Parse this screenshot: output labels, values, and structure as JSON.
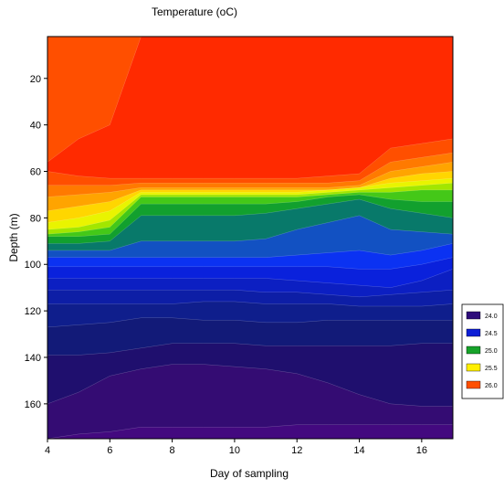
{
  "chart_data": {
    "type": "heatmap",
    "subtype": "filled-contour",
    "title": "Temperature (oC)",
    "xlabel": "Day of sampling",
    "ylabel": "Depth (m)",
    "xlim": [
      4,
      17
    ],
    "ylim": [
      175,
      2
    ],
    "y_inverted": true,
    "xticks": [
      "4",
      "6",
      "8",
      "10",
      "12",
      "14",
      "16"
    ],
    "yticks": [
      "20",
      "40",
      "60",
      "80",
      "100",
      "120",
      "140",
      "160"
    ],
    "legend": {
      "position": "right",
      "entries": [
        {
          "label": "24.0",
          "color": "#2e0d7a"
        },
        {
          "label": "24.5",
          "color": "#0d1fd6"
        },
        {
          "label": "25.0",
          "color": "#17a32a"
        },
        {
          "label": "25.5",
          "color": "#ffef00"
        },
        {
          "label": "26.0",
          "color": "#ff4f00"
        }
      ]
    },
    "contour_levels": [
      {
        "level": 23.8,
        "color": "#43097f"
      },
      {
        "level": 23.9,
        "color": "#340c73"
      },
      {
        "level": 24.0,
        "color": "#1f0f6e"
      },
      {
        "level": 24.1,
        "color": "#121a78"
      },
      {
        "level": 24.2,
        "color": "#0f1e8c"
      },
      {
        "level": 24.3,
        "color": "#0d1ea6"
      },
      {
        "level": 24.4,
        "color": "#0c1fc2"
      },
      {
        "level": 24.5,
        "color": "#0a21dc"
      },
      {
        "level": 24.6,
        "color": "#0b32f2"
      },
      {
        "level": 24.8,
        "color": "#1251c2"
      },
      {
        "level": 24.9,
        "color": "#08796a"
      },
      {
        "level": 25.0,
        "color": "#12a02e"
      },
      {
        "level": 25.2,
        "color": "#44c818"
      },
      {
        "level": 25.4,
        "color": "#a2e600"
      },
      {
        "level": 25.5,
        "color": "#e9f400"
      },
      {
        "level": 25.6,
        "color": "#ffd600"
      },
      {
        "level": 25.7,
        "color": "#ffa400"
      },
      {
        "level": 25.8,
        "color": "#ff7a00"
      },
      {
        "level": 25.9,
        "color": "#ff4f00"
      },
      {
        "level": 26.0,
        "color": "#ff2a00"
      }
    ],
    "x": [
      4,
      5,
      6,
      7,
      8,
      9,
      10,
      11,
      12,
      13,
      14,
      15,
      16,
      17
    ],
    "isoline_depths": [
      {
        "level": 26.0,
        "depth": [
          56,
          46,
          40,
          2,
          2,
          2,
          2,
          2,
          2,
          2,
          2,
          2,
          2,
          2
        ]
      },
      {
        "level": 25.9,
        "depth": [
          60,
          62,
          63,
          63,
          63,
          63,
          63,
          63,
          63,
          62,
          61,
          50,
          48,
          46
        ]
      },
      {
        "level": 25.8,
        "depth": [
          66,
          66,
          66,
          65,
          65,
          65,
          65,
          65,
          65,
          65,
          64,
          56,
          54,
          52
        ]
      },
      {
        "level": 25.7,
        "depth": [
          71,
          70,
          69,
          67,
          67,
          67,
          67,
          67,
          67,
          67,
          66,
          60,
          58,
          56
        ]
      },
      {
        "level": 25.6,
        "depth": [
          77,
          75,
          73,
          68,
          68,
          68,
          68,
          68,
          68,
          68,
          67,
          63,
          61,
          60
        ]
      },
      {
        "level": 25.5,
        "depth": [
          82,
          80,
          77,
          69,
          69,
          69,
          69,
          69,
          69,
          68,
          67,
          65,
          64,
          63
        ]
      },
      {
        "level": 25.4,
        "depth": [
          85,
          84,
          81,
          70,
          70,
          70,
          70,
          70,
          70,
          69,
          68,
          67,
          66,
          65
        ]
      },
      {
        "level": 25.2,
        "depth": [
          87,
          86,
          84,
          71,
          71,
          71,
          71,
          71,
          71,
          70,
          69,
          69,
          68,
          68
        ]
      },
      {
        "level": 25.0,
        "depth": [
          88,
          88,
          87,
          74,
          74,
          74,
          74,
          74,
          73,
          71,
          70,
          72,
          73,
          73
        ]
      },
      {
        "level": 24.9,
        "depth": [
          91,
          91,
          90,
          79,
          79,
          79,
          79,
          78,
          76,
          74,
          72,
          76,
          78,
          80
        ]
      },
      {
        "level": 24.8,
        "depth": [
          94,
          94,
          94,
          90,
          90,
          90,
          90,
          89,
          85,
          82,
          79,
          85,
          86,
          87
        ]
      },
      {
        "level": 24.6,
        "depth": [
          97,
          97,
          97,
          97,
          97,
          97,
          97,
          97,
          96,
          95,
          94,
          96,
          94,
          91
        ]
      },
      {
        "level": 24.5,
        "depth": [
          101,
          101,
          101,
          101,
          101,
          101,
          101,
          101,
          101,
          101,
          102,
          102,
          100,
          97
        ]
      },
      {
        "level": 24.4,
        "depth": [
          106,
          106,
          106,
          106,
          106,
          106,
          106,
          106,
          107,
          108,
          109,
          110,
          107,
          102
        ]
      },
      {
        "level": 24.3,
        "depth": [
          111,
          111,
          111,
          111,
          111,
          111,
          111,
          112,
          112,
          113,
          114,
          113,
          112,
          111
        ]
      },
      {
        "level": 24.2,
        "depth": [
          117,
          117,
          117,
          117,
          117,
          116,
          116,
          117,
          117,
          117,
          118,
          118,
          118,
          117
        ]
      },
      {
        "level": 24.1,
        "depth": [
          127,
          126,
          125,
          123,
          123,
          124,
          124,
          125,
          125,
          124,
          124,
          124,
          124,
          124
        ]
      },
      {
        "level": 24.0,
        "depth": [
          139,
          139,
          138,
          136,
          134,
          134,
          134,
          135,
          135,
          135,
          135,
          135,
          134,
          134
        ]
      },
      {
        "level": 23.9,
        "depth": [
          160,
          155,
          148,
          145,
          143,
          143,
          144,
          145,
          147,
          151,
          156,
          160,
          161,
          161
        ]
      },
      {
        "level": 23.8,
        "depth": [
          175,
          173,
          172,
          170,
          170,
          170,
          170,
          170,
          169,
          169,
          169,
          169,
          169,
          169
        ]
      }
    ],
    "grid": false
  }
}
